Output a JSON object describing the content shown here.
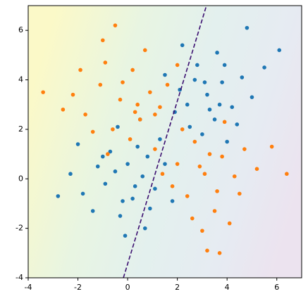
{
  "chart_data": {
    "type": "scatter",
    "xlim": [
      -4,
      7
    ],
    "ylim": [
      -4,
      7
    ],
    "xticks": [
      -4,
      -2,
      0,
      2,
      4,
      6
    ],
    "yticks": [
      -4,
      -2,
      0,
      2,
      4,
      6
    ],
    "boundary": {
      "x": [
        -0.17,
        3.17
      ],
      "y": [
        -4,
        7
      ],
      "color": "#3b0f70"
    },
    "series": [
      {
        "color": "#1f77b4",
        "x": [
          -0.5,
          0.2,
          -1.2,
          0.8,
          -0.3,
          1.1,
          -1.8,
          0.4,
          -0.9,
          0.6,
          -0.1,
          1.5,
          -2.3,
          0.0,
          -0.7,
          0.9,
          -1.4,
          0.3,
          1.8,
          -0.4,
          -2.0,
          0.7,
          -1.0,
          1.3,
          -0.2,
          -2.8,
          0.5,
          3.2,
          2.5,
          3.8,
          2.1,
          3.5,
          4.2,
          2.8,
          3.0,
          4.6,
          1.9,
          3.6,
          2.4,
          4.0,
          3.3,
          5.0,
          2.7,
          3.9,
          1.5,
          4.4,
          3.1,
          2.2,
          5.5,
          3.7,
          6.1,
          4.8
        ],
        "y": [
          0.3,
          -0.8,
          0.5,
          0.9,
          -1.5,
          -0.4,
          -0.6,
          1.3,
          -0.2,
          0.1,
          -2.3,
          0.6,
          0.2,
          0.6,
          1.1,
          -1.2,
          -1.3,
          -0.3,
          -0.9,
          2.1,
          1.4,
          -2.0,
          0.9,
          1.6,
          -0.9,
          -0.7,
          2.4,
          3.4,
          2.1,
          3.9,
          3.6,
          2.4,
          2.9,
          4.6,
          1.8,
          4.1,
          2.7,
          5.1,
          3.0,
          1.5,
          2.8,
          3.3,
          4.0,
          4.6,
          4.2,
          2.2,
          3.9,
          5.4,
          4.5,
          3.0,
          5.2,
          6.1
        ]
      },
      {
        "color": "#ff7f0e",
        "x": [
          -0.3,
          0.5,
          -1.1,
          0.9,
          -0.6,
          0.2,
          -1.7,
          1.3,
          -0.9,
          0.1,
          -2.2,
          0.7,
          -1.4,
          1.6,
          -0.2,
          -2.6,
          0.4,
          -1.0,
          1.1,
          -0.5,
          -3.4,
          2.0,
          -0.8,
          0.3,
          -1.9,
          3.1,
          2.4,
          3.8,
          2.0,
          3.5,
          4.3,
          2.7,
          3.0,
          4.7,
          1.8,
          3.6,
          2.2,
          4.1,
          3.3,
          5.2,
          2.6,
          3.9,
          1.4,
          4.5,
          3.2,
          2.9,
          5.8,
          3.7,
          6.4,
          1.1
        ],
        "y": [
          3.2,
          2.4,
          3.8,
          3.5,
          2.0,
          4.4,
          2.6,
          2.9,
          4.7,
          1.6,
          3.4,
          5.2,
          1.9,
          3.8,
          3.9,
          2.8,
          3.0,
          5.6,
          1.2,
          6.2,
          3.5,
          4.6,
          1.0,
          2.7,
          4.4,
          0.2,
          -0.7,
          0.9,
          0.6,
          -1.3,
          0.1,
          1.5,
          -2.1,
          1.2,
          -0.3,
          -0.5,
          2.0,
          -1.8,
          1.0,
          0.4,
          -1.6,
          2.3,
          0.2,
          -0.6,
          -2.9,
          0.5,
          1.3,
          -3.0,
          0.2,
          2.6
        ]
      }
    ]
  }
}
